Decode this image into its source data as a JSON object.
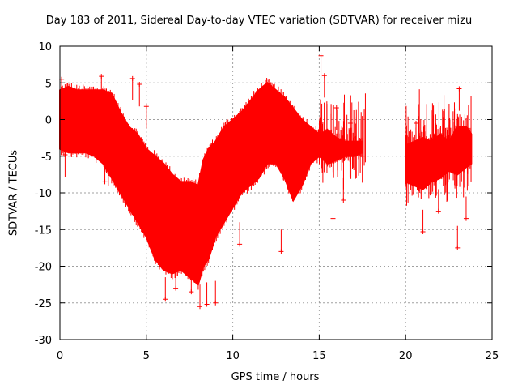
{
  "chart_data": {
    "type": "scatter",
    "title": "Day 183 of 2011, Sidereal Day-to-day VTEC variation (SDTVAR) for receiver mizu",
    "xlabel": "GPS time / hours",
    "ylabel": "SDTVAR / TECUs",
    "xlim": [
      0,
      25
    ],
    "ylim": [
      -30,
      10
    ],
    "xticks": [
      "0",
      "5",
      "10",
      "15",
      "20",
      "25"
    ],
    "yticks": [
      "10",
      "5",
      "0",
      "-5",
      "-10",
      "-15",
      "-20",
      "-25",
      "-30"
    ],
    "grid": true,
    "series": [
      {
        "name": "SDTVAR",
        "color": "#ff0000",
        "marker": "plus",
        "band_x": [
          0.0,
          0.5,
          1.0,
          1.5,
          2.0,
          2.5,
          3.0,
          3.5,
          4.0,
          4.5,
          5.0,
          5.5,
          6.0,
          6.5,
          7.0,
          7.5,
          8.0,
          8.3,
          8.6,
          9.0,
          9.5,
          10.0,
          10.5,
          11.0,
          11.5,
          12.0,
          12.5,
          13.0,
          13.5,
          14.0,
          14.5,
          15.0,
          15.5,
          16.0,
          16.5,
          17.0,
          17.5
        ],
        "band_upper": [
          4.0,
          4.5,
          4.0,
          4.0,
          4.0,
          4.0,
          3.5,
          1.0,
          -1.0,
          -2.0,
          -4.0,
          -5.0,
          -6.0,
          -7.5,
          -8.5,
          -8.5,
          -9.0,
          -5.5,
          -4.0,
          -3.0,
          -1.0,
          0.0,
          1.0,
          2.5,
          4.0,
          5.0,
          4.0,
          3.0,
          1.5,
          0.0,
          -1.0,
          -2.0,
          -1.5,
          -2.5,
          -3.0,
          -3.0,
          -3.0
        ],
        "band_lower": [
          -4.0,
          -4.5,
          -4.5,
          -4.5,
          -5.0,
          -6.0,
          -8.0,
          -10.0,
          -12.0,
          -14.0,
          -16.0,
          -19.0,
          -20.5,
          -21.0,
          -20.5,
          -21.5,
          -22.5,
          -20.0,
          -19.0,
          -16.0,
          -14.0,
          -12.0,
          -10.0,
          -9.0,
          -8.0,
          -6.0,
          -6.0,
          -8.0,
          -11.0,
          -9.0,
          -6.0,
          -5.0,
          -6.0,
          -5.5,
          -5.0,
          -5.0,
          -4.5
        ],
        "gap_x": [
          17.8,
          19.9
        ],
        "band2_x": [
          20.0,
          20.5,
          21.0,
          21.5,
          22.0,
          22.5,
          23.0,
          23.5,
          23.8
        ],
        "band2_upper": [
          -3.5,
          -3.0,
          -2.5,
          -3.0,
          -2.0,
          -3.0,
          -1.0,
          -1.0,
          -2.0
        ],
        "band2_lower": [
          -8.5,
          -9.0,
          -9.5,
          -8.5,
          -8.0,
          -7.0,
          -7.5,
          -6.5,
          -6.0
        ],
        "spikes": [
          {
            "x": 0.1,
            "y": 5.5
          },
          {
            "x": 0.3,
            "y": -4.8
          },
          {
            "x": 2.4,
            "y": 5.9
          },
          {
            "x": 2.8,
            "y": -6.0
          },
          {
            "x": 4.2,
            "y": 5.6
          },
          {
            "x": 4.6,
            "y": 4.8
          },
          {
            "x": 5.0,
            "y": 1.8
          },
          {
            "x": 2.6,
            "y": -8.5
          },
          {
            "x": 6.1,
            "y": -24.5
          },
          {
            "x": 6.7,
            "y": -23.0
          },
          {
            "x": 7.6,
            "y": -23.5
          },
          {
            "x": 8.1,
            "y": -25.5
          },
          {
            "x": 8.3,
            "y": -9.0
          },
          {
            "x": 8.5,
            "y": -25.2
          },
          {
            "x": 8.8,
            "y": -3.5
          },
          {
            "x": 9.0,
            "y": -25.0
          },
          {
            "x": 10.4,
            "y": -17.0
          },
          {
            "x": 12.8,
            "y": -18.0
          },
          {
            "x": 15.1,
            "y": 8.7
          },
          {
            "x": 15.3,
            "y": 6.0
          },
          {
            "x": 16.0,
            "y": 1.6
          },
          {
            "x": 15.8,
            "y": -13.5
          },
          {
            "x": 16.4,
            "y": -11.0
          },
          {
            "x": 16.8,
            "y": -0.5
          },
          {
            "x": 21.0,
            "y": -15.3
          },
          {
            "x": 21.9,
            "y": -12.5
          },
          {
            "x": 23.0,
            "y": -17.5
          },
          {
            "x": 23.5,
            "y": -13.5
          },
          {
            "x": 23.1,
            "y": 4.2
          },
          {
            "x": 20.6,
            "y": -0.5
          }
        ]
      }
    ]
  }
}
